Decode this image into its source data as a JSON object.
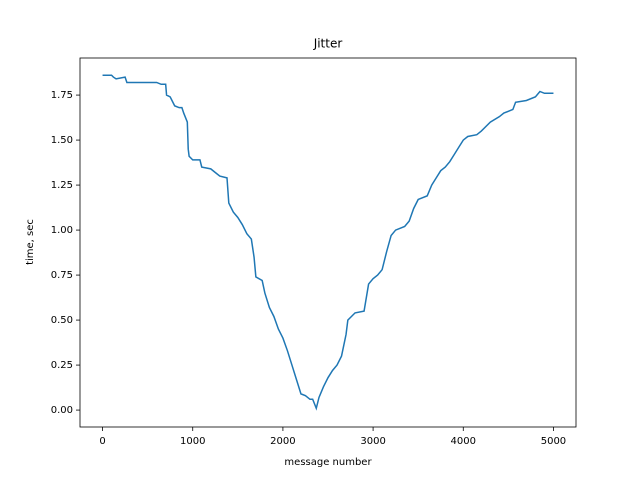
{
  "chart_data": {
    "type": "line",
    "title": "Jitter",
    "xlabel": "message number",
    "ylabel": "time, sec",
    "x": [
      0,
      100,
      120,
      150,
      250,
      270,
      400,
      500,
      600,
      650,
      700,
      710,
      750,
      800,
      850,
      880,
      900,
      940,
      950,
      960,
      1000,
      1080,
      1100,
      1200,
      1250,
      1300,
      1380,
      1400,
      1450,
      1500,
      1550,
      1600,
      1650,
      1680,
      1700,
      1770,
      1800,
      1850,
      1900,
      1950,
      2000,
      2050,
      2100,
      2150,
      2200,
      2250,
      2300,
      2330,
      2370,
      2400,
      2450,
      2500,
      2550,
      2600,
      2650,
      2700,
      2720,
      2800,
      2900,
      2950,
      3000,
      3050,
      3100,
      3150,
      3200,
      3250,
      3350,
      3400,
      3450,
      3500,
      3600,
      3650,
      3700,
      3750,
      3800,
      3850,
      3900,
      3950,
      4000,
      4050,
      4150,
      4200,
      4300,
      4400,
      4450,
      4550,
      4580,
      4700,
      4800,
      4850,
      4900,
      5000
    ],
    "values": [
      1.86,
      1.86,
      1.85,
      1.84,
      1.85,
      1.82,
      1.82,
      1.82,
      1.82,
      1.81,
      1.81,
      1.75,
      1.74,
      1.69,
      1.68,
      1.68,
      1.65,
      1.6,
      1.45,
      1.41,
      1.39,
      1.39,
      1.35,
      1.34,
      1.32,
      1.3,
      1.29,
      1.15,
      1.1,
      1.07,
      1.03,
      0.98,
      0.95,
      0.85,
      0.74,
      0.72,
      0.65,
      0.57,
      0.52,
      0.45,
      0.4,
      0.33,
      0.25,
      0.17,
      0.09,
      0.08,
      0.06,
      0.06,
      0.01,
      0.07,
      0.13,
      0.18,
      0.22,
      0.25,
      0.3,
      0.42,
      0.5,
      0.54,
      0.55,
      0.7,
      0.73,
      0.75,
      0.78,
      0.88,
      0.97,
      1.0,
      1.02,
      1.05,
      1.12,
      1.17,
      1.19,
      1.25,
      1.29,
      1.33,
      1.35,
      1.38,
      1.42,
      1.46,
      1.5,
      1.52,
      1.53,
      1.55,
      1.6,
      1.63,
      1.65,
      1.67,
      1.71,
      1.72,
      1.74,
      1.77,
      1.76,
      1.76
    ],
    "color": "#1f77b4",
    "xlim": [
      -250,
      5250
    ],
    "xticks": [
      0,
      1000,
      2000,
      3000,
      4000,
      5000
    ],
    "ylim": [
      -0.094,
      1.956
    ],
    "yticks": [
      {
        "value": 0,
        "label": "0.00"
      },
      {
        "value": 0.25,
        "label": "0.25"
      },
      {
        "value": 0.5,
        "label": "0.50"
      },
      {
        "value": 0.75,
        "label": "0.75"
      },
      {
        "value": 1,
        "label": "1.00"
      },
      {
        "value": 1.25,
        "label": "1.25"
      },
      {
        "value": 1.5,
        "label": "1.50"
      },
      {
        "value": 1.75,
        "label": "1.75"
      }
    ]
  }
}
